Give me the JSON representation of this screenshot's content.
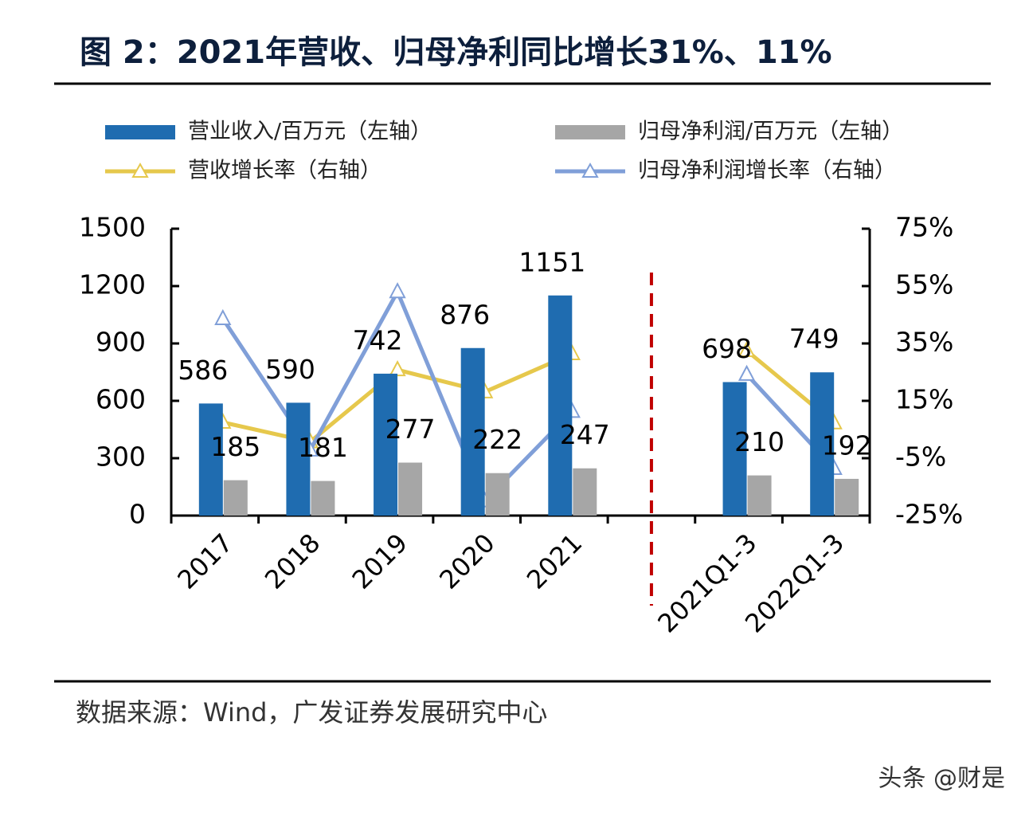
{
  "chart_data": {
    "type": "bar",
    "title": "图 2：2021年营收、归母净利同比增长31%、11%",
    "source": "数据来源：Wind，广发证券发展研究中心",
    "watermark": "头条 @财是",
    "categories": [
      "2017",
      "2018",
      "2019",
      "2020",
      "2021",
      null,
      "2021Q1-3",
      "2022Q1-3"
    ],
    "series": [
      {
        "name": "营业收入/百万元（左轴）",
        "type": "bar",
        "color": "#1f6cb0",
        "values": [
          586,
          590,
          742,
          876,
          1151,
          null,
          698,
          749
        ]
      },
      {
        "name": "归母净利润/百万元（左轴）",
        "type": "bar",
        "color": "#a6a6a6",
        "values": [
          185,
          181,
          277,
          222,
          247,
          null,
          210,
          192
        ]
      },
      {
        "name": "营收增长率（右轴）",
        "type": "line",
        "axis": "y2",
        "color": "#e6c84c",
        "values": [
          7.5,
          0.7,
          25.8,
          18.1,
          31.4,
          null,
          32.5,
          7.3
        ]
      },
      {
        "name": "归母净利润增长率（右轴）",
        "type": "line",
        "axis": "y2",
        "color": "#809fd8",
        "values": [
          43.6,
          -2.2,
          53,
          -19.9,
          11.3,
          null,
          24.2,
          -8.6
        ]
      }
    ],
    "ylim": [
      0,
      1500
    ],
    "yticks": [
      0,
      300,
      600,
      900,
      1200,
      1500
    ],
    "y2lim": [
      -25,
      75
    ],
    "y2ticks": [
      {
        "value": -25,
        "label": "-25%"
      },
      {
        "value": -5,
        "label": "-5%"
      },
      {
        "value": 15,
        "label": "15%"
      },
      {
        "value": 35,
        "label": "35%"
      },
      {
        "value": 55,
        "label": "55%"
      },
      {
        "value": 75,
        "label": "75%"
      }
    ],
    "grid": false
  }
}
